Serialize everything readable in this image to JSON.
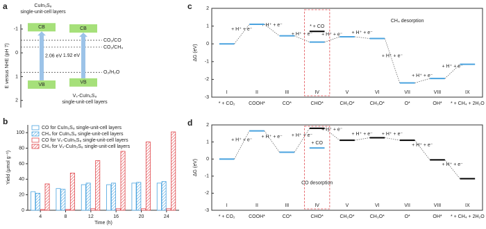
{
  "panel_a": {
    "label": "a",
    "ylabel": "E versus NHE (pH 7)",
    "ylim": [
      -1.2,
      2.3
    ],
    "yticks": [
      -1,
      0,
      1,
      2
    ],
    "cb_label": "CB",
    "vb_label": "VB",
    "band_color": "#a6e07a",
    "arrow_color": "#9cc3e8",
    "bands": [
      {
        "title": [
          "CuIn₅S₈",
          "single-unit-cell layers"
        ],
        "cb": -0.9,
        "vb": 1.16,
        "gap_label": "2.06 eV"
      },
      {
        "title": [
          "Vₛ-CuIn₅S₈",
          "single-unit-cell layers"
        ],
        "cb": -0.85,
        "vb": 1.07,
        "gap_label": "1.92 eV"
      }
    ],
    "redox": [
      {
        "label": "CO₂/CO",
        "value": -0.53
      },
      {
        "label": "CO₂/CH₄",
        "value": -0.24
      },
      {
        "label": "O₂/H₂O",
        "value": 0.82
      }
    ]
  },
  "chart_data": [
    {
      "label": "b",
      "type": "bar",
      "xlabel": "Time (h)",
      "ylabel": "Yield (μmol g⁻¹)",
      "categories": [
        "4",
        "8",
        "12",
        "16",
        "20",
        "24"
      ],
      "ylim": [
        0,
        110
      ],
      "yticks": [
        0,
        20,
        40,
        60,
        80,
        100
      ],
      "legend": "top-left",
      "series": [
        {
          "name": "CO for CuIn₅S₈ single-unit-cell layers",
          "color": "#4aa3df",
          "hatch": false,
          "values": [
            24,
            28,
            33,
            33,
            35,
            35
          ]
        },
        {
          "name": "CH₄ for CuIn₅S₈ single-unit-cell layers",
          "color": "#4aa3df",
          "hatch": true,
          "values": [
            22,
            27,
            35,
            35,
            36,
            37
          ]
        },
        {
          "name": "CO for Vₛ-CuIn₅S₈ single-unit-cell layers",
          "color": "#e0474c",
          "hatch": false,
          "values": [
            1,
            1,
            2,
            2,
            2,
            2
          ]
        },
        {
          "name": "CH₄ for Vₛ-CuIn₅S₈ single-unit-cell layers",
          "color": "#e0474c",
          "hatch": true,
          "values": [
            34,
            48,
            64,
            76,
            88,
            101
          ]
        }
      ]
    },
    {
      "label": "c",
      "type": "energy",
      "ylabel": "ΔG (eV)",
      "ylim": [
        -3,
        2
      ],
      "yticks": [
        -3,
        -2,
        -1,
        0,
        1,
        2
      ],
      "categories": [
        "I",
        "II",
        "III",
        "IV",
        "V",
        "VI",
        "VII",
        "VIII",
        "IX"
      ],
      "species": [
        "* + CO₂",
        "COOH*",
        "CO*",
        "CHO*",
        "CH₂O*",
        "CH₃O*",
        "O*",
        "OH*",
        "* + CH₄ + 2H₂O"
      ],
      "values": [
        0,
        1.1,
        0.45,
        0.1,
        0.4,
        0.3,
        -2.2,
        -1.95,
        -1.15
      ],
      "colors": [
        "#4aa3df",
        "#4aa3df",
        "#4aa3df",
        "#4aa3df",
        "#4aa3df",
        "#4aa3df",
        "#4aa3df",
        "#4aa3df",
        "#4aa3df"
      ],
      "step_label": "+ H⁺ + e⁻",
      "extra": {
        "values": [
          null,
          null,
          null,
          0.7,
          null,
          null,
          null,
          null,
          null
        ],
        "label": "* + CO",
        "color": "#000000"
      },
      "annotation": "CH₄ desorption"
    },
    {
      "label": "d",
      "type": "energy",
      "ylabel": "ΔG (eV)",
      "ylim": [
        -3,
        2
      ],
      "yticks": [
        -3,
        -2,
        -1,
        0,
        1,
        2
      ],
      "categories": [
        "I",
        "II",
        "III",
        "IV",
        "V",
        "VI",
        "VII",
        "VIII",
        "IX"
      ],
      "species": [
        "* + CO₂",
        "COOH*",
        "CO*",
        "CHO*",
        "CH₂O*",
        "CH₃O*",
        "O*",
        "OH*",
        "* + CH₄ + 2H₂O"
      ],
      "values": [
        0,
        1.65,
        0.4,
        1.8,
        1.1,
        1.25,
        1.1,
        -0.05,
        -1.15
      ],
      "colors": [
        "#4aa3df",
        "#4aa3df",
        "#4aa3df",
        "#000000",
        "#000000",
        "#000000",
        "#000000",
        "#000000",
        "#000000"
      ],
      "step_label": "+ H⁺ + e⁻",
      "extra": {
        "values": [
          null,
          null,
          null,
          0.65,
          null,
          null,
          null,
          null,
          null
        ],
        "label": "+ CO",
        "color": "#4aa3df"
      },
      "annotation": "CO desorption"
    }
  ]
}
